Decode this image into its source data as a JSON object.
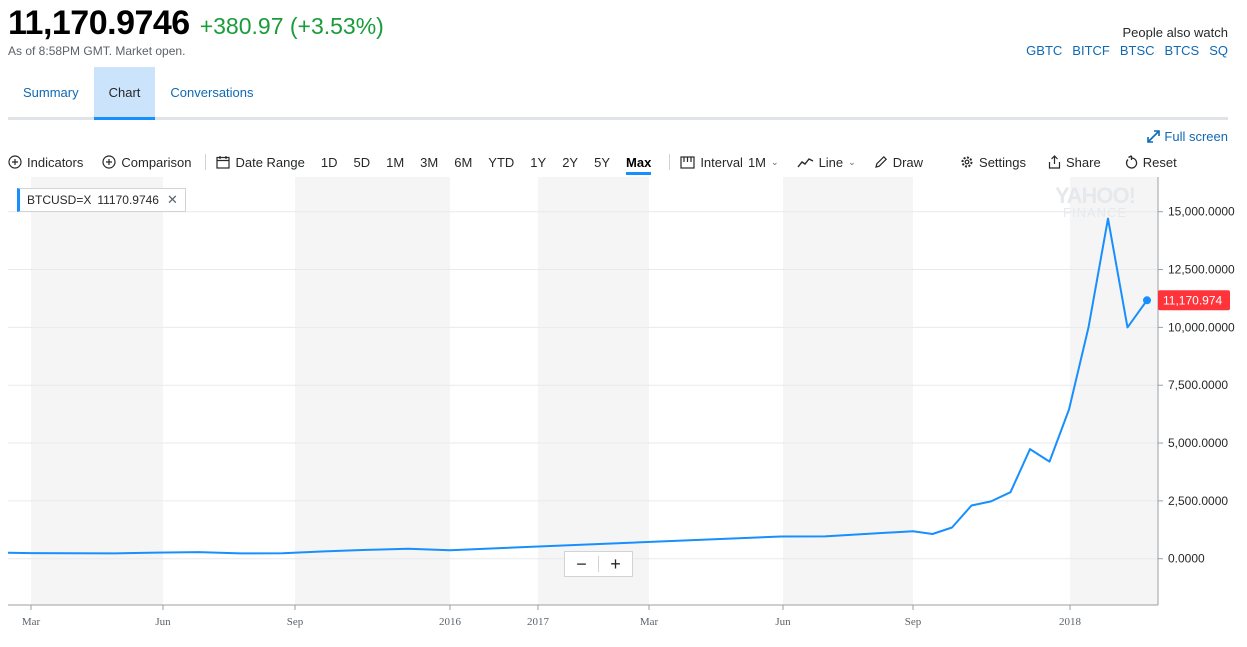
{
  "quote": {
    "price": "11,170.9746",
    "change": "+380.97 (+3.53%)",
    "as_of": "As of 8:58PM GMT. Market open."
  },
  "people_also_watch": {
    "title": "People also watch",
    "symbols": [
      "GBTC",
      "BITCF",
      "BTSC",
      "BTCS",
      "SQ"
    ]
  },
  "tabs": [
    "Summary",
    "Chart",
    "Conversations"
  ],
  "active_tab": "Chart",
  "toolbar": {
    "fullscreen": "Full screen",
    "indicators": "Indicators",
    "comparison": "Comparison",
    "date_range": "Date Range",
    "ranges": [
      "1D",
      "5D",
      "1M",
      "3M",
      "6M",
      "YTD",
      "1Y",
      "2Y",
      "5Y",
      "Max"
    ],
    "active_range": "Max",
    "interval_label": "Interval",
    "interval_value": "1M",
    "line": "Line",
    "draw": "Draw",
    "settings": "Settings",
    "share": "Share",
    "reset": "Reset"
  },
  "legend": {
    "symbol": "BTCUSD=X",
    "value": "11170.9746"
  },
  "watermark": {
    "line1": "YAHOO!",
    "line2": "FINANCE"
  },
  "zoom": {
    "minus": "−",
    "plus": "+"
  },
  "colors": {
    "line": "#188fff",
    "positive": "#1a9c3b",
    "last_price_label": "#ff333a",
    "link": "#0f69b3",
    "band": "#f5f5f5"
  },
  "chart_data": {
    "type": "line",
    "title": "",
    "xlabel": "",
    "ylabel": "",
    "x_ticks": [
      "Mar",
      "Jun",
      "Sep",
      "2016",
      "2017",
      "Mar",
      "Jun",
      "Sep",
      "2018"
    ],
    "y_ticks": [
      "0.0000",
      "2,500.0000",
      "5,000.0000",
      "7,500.0000",
      "10,000.0000",
      "12,500.0000",
      "15,000.0000"
    ],
    "ylim": [
      -2000,
      16500
    ],
    "grid": true,
    "last_price_label": "11,170.974",
    "series": [
      {
        "name": "BTCUSD=X",
        "points": [
          [
            "2015-02",
            255
          ],
          [
            "2015-03",
            245
          ],
          [
            "2015-04",
            235
          ],
          [
            "2015-05",
            230
          ],
          [
            "2015-06",
            265
          ],
          [
            "2015-07",
            285
          ],
          [
            "2015-08",
            230
          ],
          [
            "2015-09",
            235
          ],
          [
            "2015-10",
            315
          ],
          [
            "2015-11",
            380
          ],
          [
            "2015-12",
            430
          ],
          [
            "2016-01",
            370
          ],
          [
            "2016-11",
            960
          ],
          [
            "2016-12",
            965
          ],
          [
            "2017-02",
            1190
          ],
          [
            "2017-03",
            1070
          ],
          [
            "2017-04",
            1350
          ],
          [
            "2017-05",
            2300
          ],
          [
            "2017-06",
            2480
          ],
          [
            "2017-07",
            2875
          ],
          [
            "2017-08",
            4740
          ],
          [
            "2017-09",
            4200
          ],
          [
            "2017-10",
            6450
          ],
          [
            "2017-11",
            10000
          ],
          [
            "2017-12",
            14700
          ],
          [
            "2018-01",
            10000
          ],
          [
            "2018-02",
            11170.97
          ]
        ]
      }
    ]
  }
}
